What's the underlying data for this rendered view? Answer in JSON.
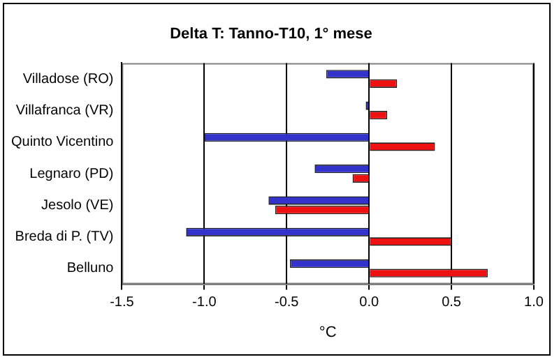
{
  "chart_data": {
    "type": "bar",
    "orientation": "horizontal",
    "title": "Delta T: Tanno-T10, 1° mese",
    "xlabel": "°C",
    "categories": [
      "Villadose (RO)",
      "Villafranca (VR)",
      "Quinto Vicentino",
      "Legnaro (PD)",
      "Jesolo (VE)",
      "Breda di P. (TV)",
      "Belluno"
    ],
    "series": [
      {
        "color": "#3333cc",
        "values": [
          -0.26,
          -0.02,
          -1.0,
          -0.33,
          -0.61,
          -1.11,
          -0.48
        ]
      },
      {
        "color": "#ee1111",
        "values": [
          0.17,
          0.11,
          0.4,
          -0.1,
          -0.57,
          0.5,
          0.72
        ]
      }
    ],
    "xlim": [
      -1.5,
      1.0
    ],
    "xticks": [
      {
        "value": -1.5,
        "label": "-1.5"
      },
      {
        "value": -1,
        "label": "-1.0"
      },
      {
        "value": -0.5,
        "label": "-0.5"
      },
      {
        "value": 0,
        "label": "0.0"
      },
      {
        "value": 0.5,
        "label": "0.5"
      },
      {
        "value": 1,
        "label": "1.0"
      }
    ],
    "grid": "x",
    "legend": false
  }
}
